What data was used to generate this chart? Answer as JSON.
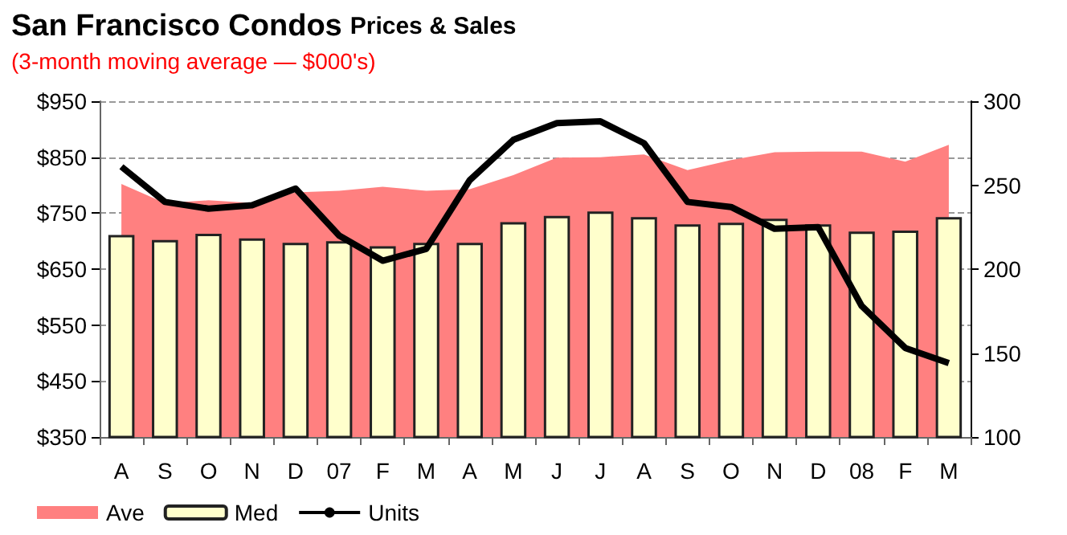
{
  "chart_data": {
    "type": "bar",
    "title": "San Francisco Condos",
    "subtitle": "Prices & Sales",
    "annotations": [
      "(3-month moving average — $000's)"
    ],
    "categories": [
      "A",
      "S",
      "O",
      "N",
      "D",
      "07",
      "F",
      "M",
      "A",
      "M",
      "J",
      "J",
      "A",
      "S",
      "O",
      "N",
      "D",
      "08",
      "F",
      "M"
    ],
    "series": [
      {
        "name": "Ave",
        "type": "area",
        "color": "#ff8080",
        "values": [
          802,
          768,
          773,
          768,
          787,
          790,
          797,
          790,
          793,
          818,
          849,
          850,
          855,
          827,
          845,
          859,
          860,
          860,
          842,
          872
        ]
      },
      {
        "name": "Med",
        "color": "#ffffcc",
        "values": [
          711,
          702,
          713,
          705,
          697,
          700,
          691,
          697,
          697,
          734,
          745,
          753,
          743,
          730,
          733,
          740,
          730,
          717,
          719,
          743
        ]
      },
      {
        "name": "Units",
        "type": "line",
        "axis": "y2",
        "color": "#000000",
        "values": [
          261,
          240,
          236,
          238,
          248,
          220,
          205,
          212,
          253,
          277,
          287,
          288,
          275,
          240,
          237,
          224,
          225,
          178,
          153,
          144
        ]
      }
    ],
    "ylim": [
      350,
      950
    ],
    "yticks": [
      {
        "value": 350,
        "label": "$350"
      },
      {
        "value": 450,
        "label": "$450"
      },
      {
        "value": 550,
        "label": "$550"
      },
      {
        "value": 650,
        "label": "$650"
      },
      {
        "value": 750,
        "label": "$750"
      },
      {
        "value": 850,
        "label": "$850"
      },
      {
        "value": 950,
        "label": "$950"
      }
    ],
    "y2lim": [
      100,
      300
    ],
    "y2ticks": [
      100,
      150,
      200,
      250,
      300
    ],
    "grid": "y",
    "legend": "bottom left"
  }
}
